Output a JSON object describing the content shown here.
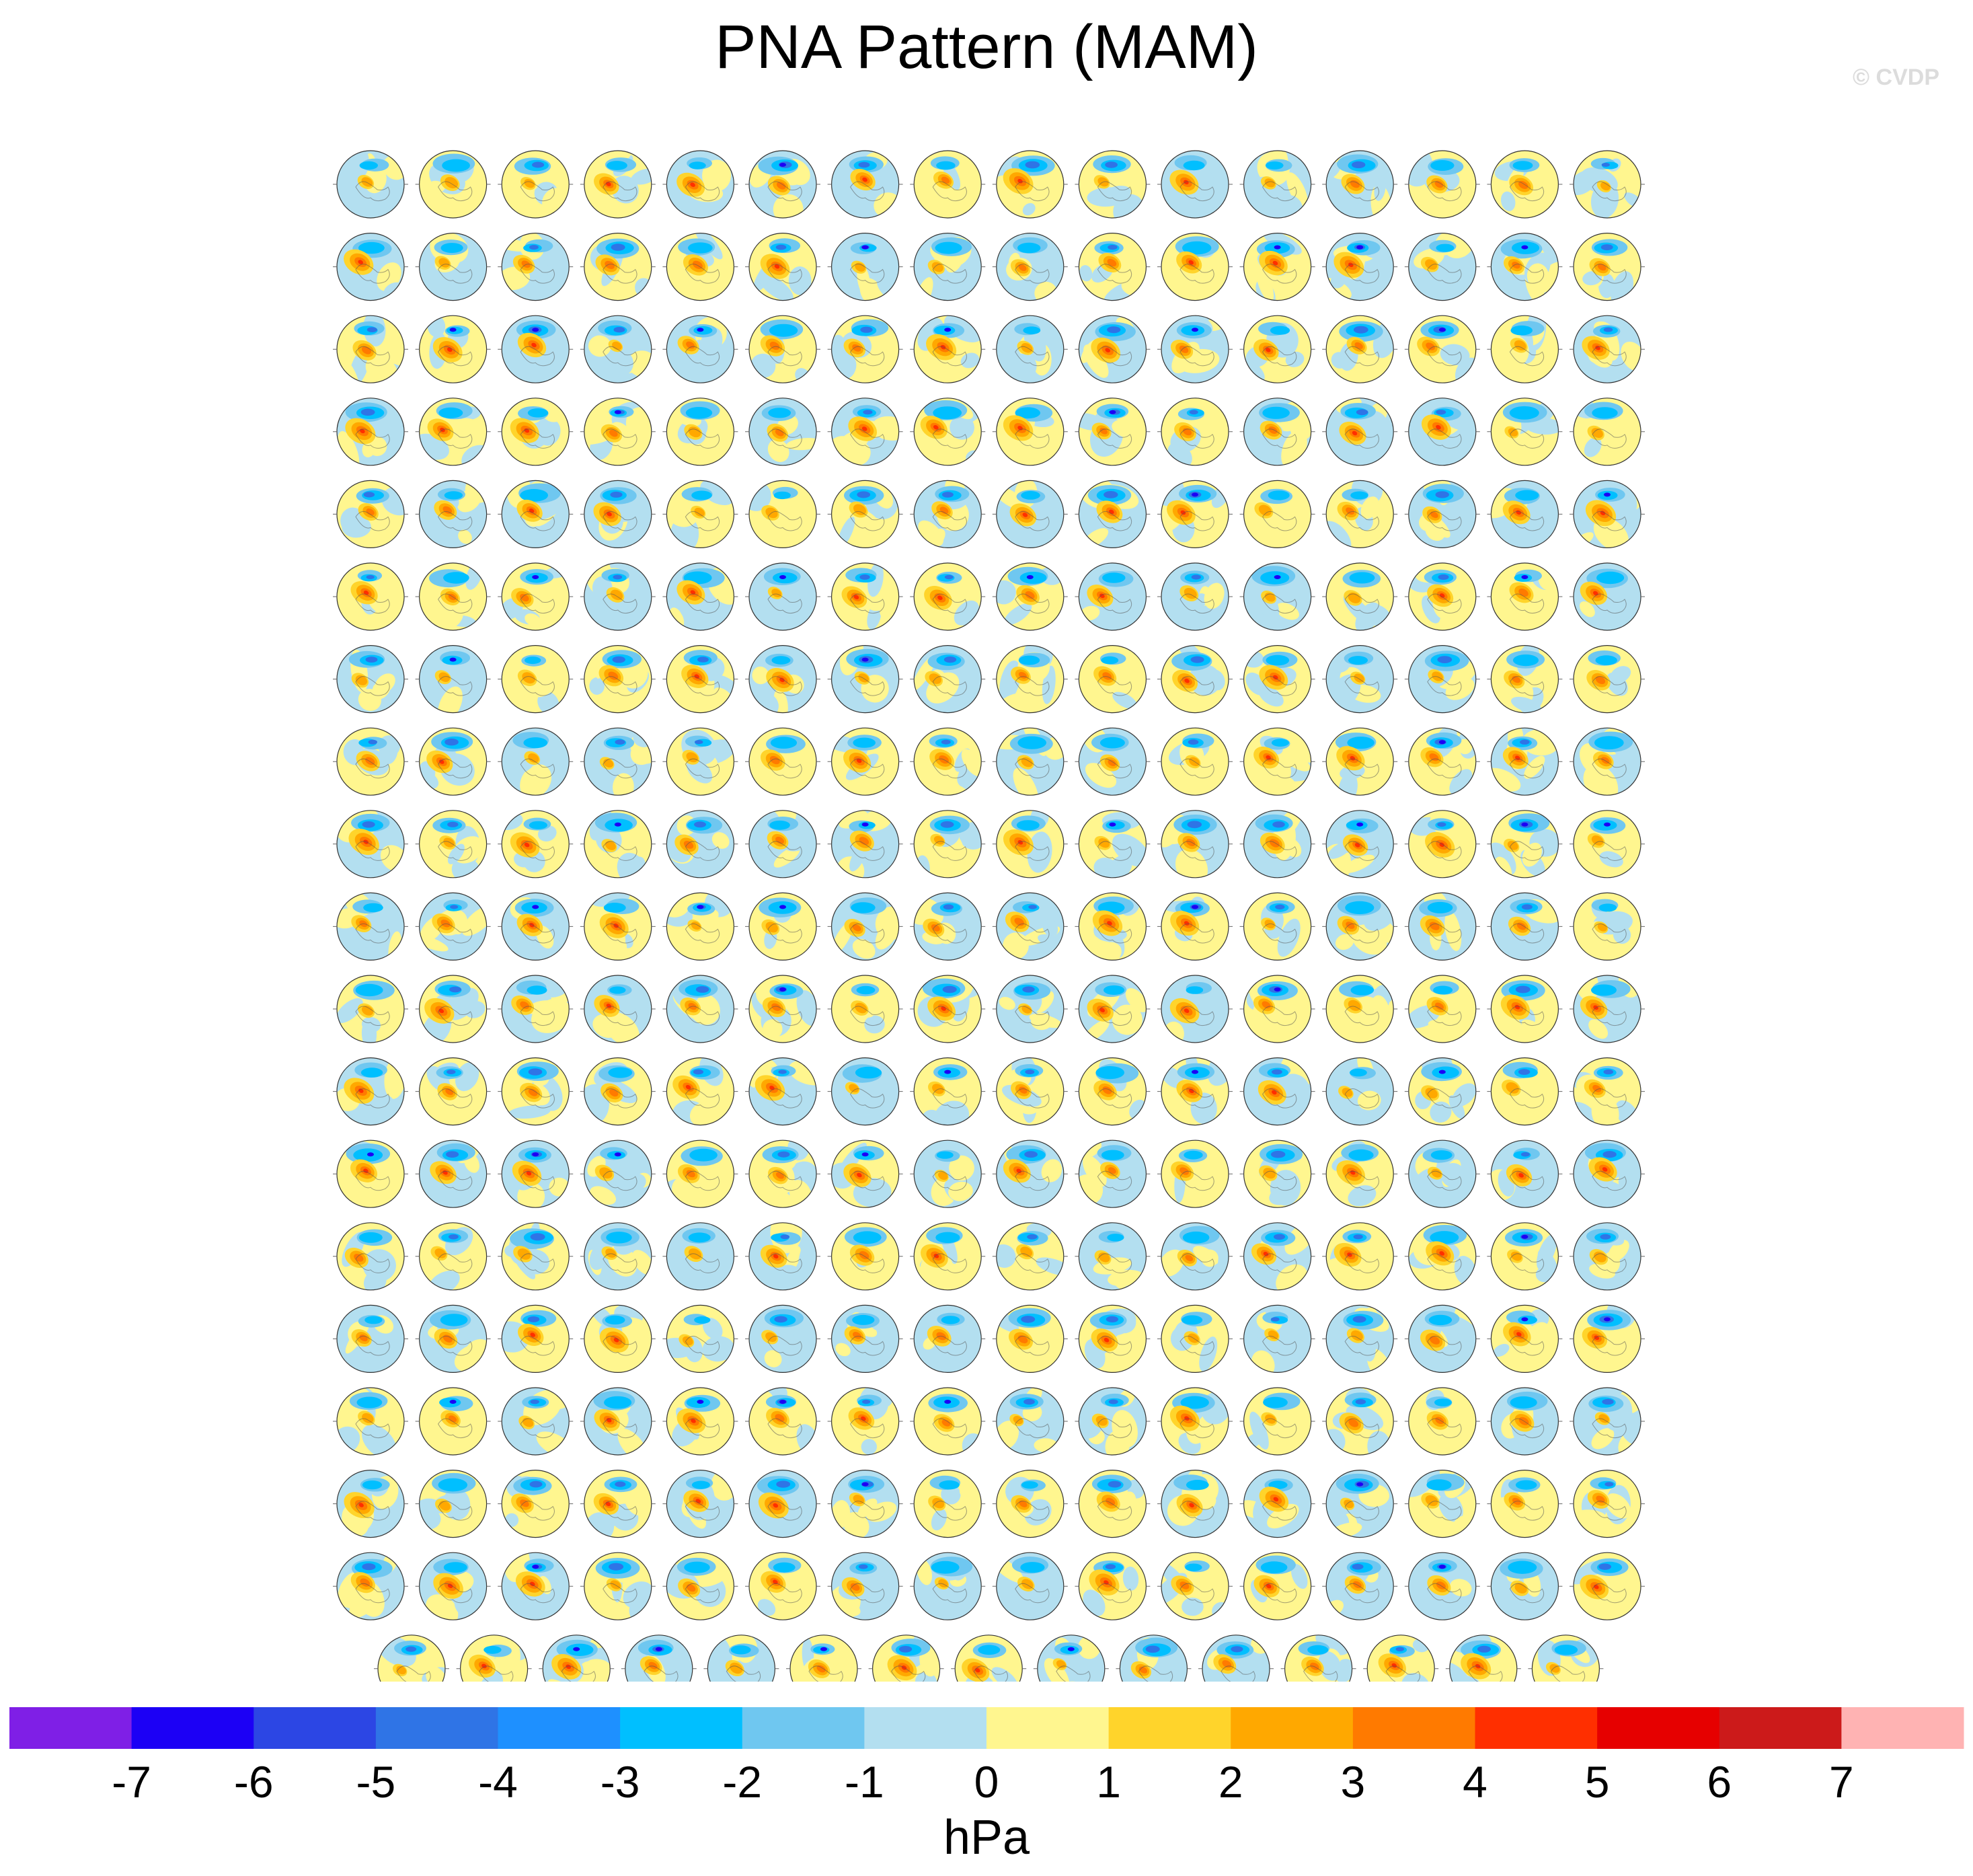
{
  "figure": {
    "title": "PNA Pattern (MAM)",
    "watermark": "© CVDP"
  },
  "chart_data": {
    "type": "heatmap",
    "title": "PNA Pattern (MAM)",
    "panel_grid": {
      "columns": 16,
      "full_rows": 18,
      "last_row_panels": 15,
      "total_panels": 303,
      "projection": "north-polar-stereographic"
    },
    "colorbar": {
      "unit_label": "hPa",
      "tick_labels": [
        "-7",
        "-6",
        "-5",
        "-4",
        "-3",
        "-2",
        "-1",
        "0",
        "1",
        "2",
        "3",
        "4",
        "5",
        "6",
        "7"
      ],
      "bin_edges": [
        -7,
        -6,
        -5,
        -4,
        -3,
        -2,
        -1,
        0,
        1,
        2,
        3,
        4,
        5,
        6,
        7
      ],
      "colors": [
        "#7f1fe6",
        "#1c00f5",
        "#2c46e4",
        "#2f74e6",
        "#1e90ff",
        "#00bfff",
        "#6fc7f0",
        "#b3dff0",
        "#fff68f",
        "#ffd42b",
        "#ffa800",
        "#ff7a00",
        "#ff2f00",
        "#e60000",
        "#cc1a1a",
        "#ffb3b3"
      ]
    }
  }
}
